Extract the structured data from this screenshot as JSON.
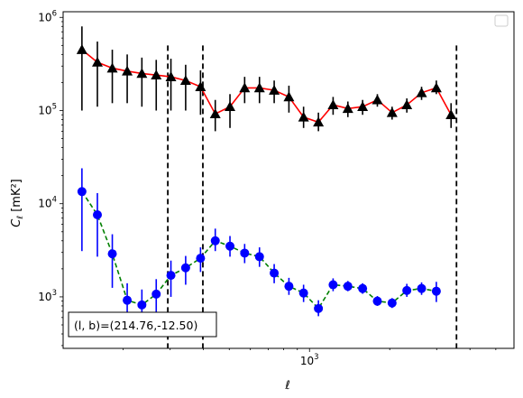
{
  "chart_data": {
    "type": "scatter",
    "title": "",
    "xlabel": "ℓ",
    "ylabel_main": "C",
    "ylabel_sub": "ℓ",
    "ylabel_unit": "[mK²]",
    "x_scale": "log",
    "y_scale": "log",
    "xlim": [
      119,
      5850
    ],
    "ylim": [
      280,
      1150000
    ],
    "grid": false,
    "legend_placement": "top-right",
    "x_ticks": [
      {
        "value": 1000,
        "base": "10",
        "exp": "3"
      }
    ],
    "y_ticks": [
      {
        "value": 1000,
        "base": "10",
        "exp": "3"
      },
      {
        "value": 10000,
        "base": "10",
        "exp": "4"
      },
      {
        "value": 100000,
        "base": "10",
        "exp": "5"
      },
      {
        "value": 1000000,
        "base": "10",
        "exp": "6"
      }
    ],
    "vlines": [
      {
        "x": 294,
        "y_range": [
          280,
          500000
        ]
      },
      {
        "x": 398,
        "y_range": [
          280,
          500000
        ]
      },
      {
        "x": 3560,
        "y_range": [
          280,
          500000
        ]
      }
    ],
    "annotation": {
      "text": "(l, b)=(214.76,-12.50)"
    },
    "series": [
      {
        "color": "#000000",
        "line_color": "#ff0000",
        "line_style": "solid",
        "marker": "triangle",
        "points": [
          {
            "x": 140,
            "y": 450000,
            "lo": 100000,
            "hi": 800000
          },
          {
            "x": 160,
            "y": 330000,
            "lo": 110000,
            "hi": 550000
          },
          {
            "x": 182,
            "y": 285000,
            "lo": 120000,
            "hi": 450000
          },
          {
            "x": 207,
            "y": 265000,
            "lo": 120000,
            "hi": 400000
          },
          {
            "x": 235,
            "y": 250000,
            "lo": 110000,
            "hi": 370000
          },
          {
            "x": 266,
            "y": 240000,
            "lo": 100000,
            "hi": 350000
          },
          {
            "x": 302,
            "y": 230000,
            "lo": 100000,
            "hi": 360000
          },
          {
            "x": 343,
            "y": 210000,
            "lo": 100000,
            "hi": 310000
          },
          {
            "x": 390,
            "y": 180000,
            "lo": 90000,
            "hi": 270000
          },
          {
            "x": 443,
            "y": 92000,
            "lo": 60000,
            "hi": 130000
          },
          {
            "x": 503,
            "y": 110000,
            "lo": 65000,
            "hi": 150000
          },
          {
            "x": 571,
            "y": 175000,
            "lo": 120000,
            "hi": 230000
          },
          {
            "x": 649,
            "y": 175000,
            "lo": 120000,
            "hi": 230000
          },
          {
            "x": 737,
            "y": 165000,
            "lo": 120000,
            "hi": 210000
          },
          {
            "x": 837,
            "y": 140000,
            "lo": 95000,
            "hi": 185000
          },
          {
            "x": 950,
            "y": 85000,
            "lo": 65000,
            "hi": 110000
          },
          {
            "x": 1080,
            "y": 75000,
            "lo": 60000,
            "hi": 95000
          },
          {
            "x": 1226,
            "y": 115000,
            "lo": 90000,
            "hi": 140000
          },
          {
            "x": 1393,
            "y": 105000,
            "lo": 85000,
            "hi": 125000
          },
          {
            "x": 1582,
            "y": 110000,
            "lo": 90000,
            "hi": 130000
          },
          {
            "x": 1797,
            "y": 130000,
            "lo": 110000,
            "hi": 150000
          },
          {
            "x": 2041,
            "y": 95000,
            "lo": 80000,
            "hi": 110000
          },
          {
            "x": 2318,
            "y": 115000,
            "lo": 95000,
            "hi": 135000
          },
          {
            "x": 2633,
            "y": 155000,
            "lo": 130000,
            "hi": 180000
          },
          {
            "x": 2991,
            "y": 175000,
            "lo": 150000,
            "hi": 210000
          },
          {
            "x": 3397,
            "y": 90000,
            "lo": 65000,
            "hi": 120000
          }
        ]
      },
      {
        "color": "#0000ff",
        "line_color": "#008000",
        "line_style": "dashed",
        "marker": "circle",
        "points": [
          {
            "x": 140,
            "y": 13500,
            "lo": 3100,
            "hi": 24000
          },
          {
            "x": 160,
            "y": 7600,
            "lo": 2700,
            "hi": 13000
          },
          {
            "x": 182,
            "y": 2900,
            "lo": 1250,
            "hi": 4700
          },
          {
            "x": 207,
            "y": 920,
            "lo": 500,
            "hi": 1400
          },
          {
            "x": 235,
            "y": 820,
            "lo": 450,
            "hi": 1200
          },
          {
            "x": 266,
            "y": 1070,
            "lo": 600,
            "hi": 1550
          },
          {
            "x": 302,
            "y": 1700,
            "lo": 1000,
            "hi": 2450
          },
          {
            "x": 343,
            "y": 2050,
            "lo": 1350,
            "hi": 2750
          },
          {
            "x": 390,
            "y": 2600,
            "lo": 1850,
            "hi": 3400
          },
          {
            "x": 443,
            "y": 4000,
            "lo": 3100,
            "hi": 5400
          },
          {
            "x": 503,
            "y": 3500,
            "lo": 2700,
            "hi": 4500
          },
          {
            "x": 571,
            "y": 2950,
            "lo": 2300,
            "hi": 3700
          },
          {
            "x": 649,
            "y": 2700,
            "lo": 2100,
            "hi": 3400
          },
          {
            "x": 737,
            "y": 1800,
            "lo": 1400,
            "hi": 2250
          },
          {
            "x": 837,
            "y": 1300,
            "lo": 1050,
            "hi": 1600
          },
          {
            "x": 950,
            "y": 1100,
            "lo": 880,
            "hi": 1350
          },
          {
            "x": 1080,
            "y": 750,
            "lo": 620,
            "hi": 920
          },
          {
            "x": 1226,
            "y": 1350,
            "lo": 1150,
            "hi": 1580
          },
          {
            "x": 1393,
            "y": 1300,
            "lo": 1150,
            "hi": 1480
          },
          {
            "x": 1582,
            "y": 1230,
            "lo": 1080,
            "hi": 1400
          },
          {
            "x": 1797,
            "y": 900,
            "lo": 800,
            "hi": 1020
          },
          {
            "x": 2041,
            "y": 860,
            "lo": 760,
            "hi": 970
          },
          {
            "x": 2318,
            "y": 1170,
            "lo": 1000,
            "hi": 1380
          },
          {
            "x": 2633,
            "y": 1230,
            "lo": 1050,
            "hi": 1430
          },
          {
            "x": 2991,
            "y": 1150,
            "lo": 880,
            "hi": 1450
          }
        ]
      }
    ]
  }
}
